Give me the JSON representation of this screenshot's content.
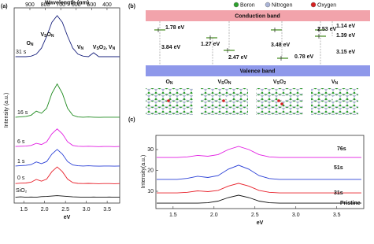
{
  "chart_data": [
    {
      "type": "line",
      "panel_label": "(a)",
      "x_label": "eV",
      "y_label": "Intensity (a.u.)",
      "x2_label": "Wavelength (nm)",
      "x": [
        1.3,
        1.425,
        1.55,
        1.675,
        1.8,
        1.925,
        2.05,
        2.175,
        2.3,
        2.425,
        2.55,
        2.675,
        2.8,
        2.925,
        3.05,
        3.175,
        3.3,
        3.425,
        3.55,
        3.675,
        3.8
      ],
      "xlim": [
        1.27,
        3.8
      ],
      "xticks": [
        1.5,
        {
          "value": 2,
          "label": "2.0"
        },
        2.5,
        {
          "value": 3,
          "label": "3.0"
        },
        3.5
      ],
      "x2lim": [
        1002,
        318
      ],
      "x2ticks": [
        900,
        800,
        700,
        600,
        500,
        400
      ],
      "ylim": [
        0,
        100
      ],
      "series": [
        {
          "name": "SiO₂",
          "color": "#111111",
          "values": [
            3,
            3.2,
            3,
            3.1,
            3,
            3.3,
            3.4,
            3.6,
            3.8,
            3.6,
            3.4,
            3.2,
            3.1,
            3,
            3,
            3.1,
            3,
            3,
            3.1,
            3,
            3
          ]
        },
        {
          "name": "0 s",
          "color": "#e8202a",
          "values": [
            10,
            10.2,
            10.3,
            10.7,
            12.1,
            11.2,
            12.3,
            16.1,
            18.5,
            16.1,
            12.3,
            10.5,
            10.1,
            10,
            10.1,
            10,
            9.9,
            10,
            10,
            9.9,
            10
          ]
        },
        {
          "name": "1 s",
          "color": "#2a3fd6",
          "values": [
            19,
            19.2,
            19.3,
            19.7,
            21.1,
            20.2,
            21.3,
            25.1,
            27.5,
            25.1,
            21.3,
            19.5,
            19.1,
            19,
            19.1,
            19,
            18.9,
            19,
            19,
            18.9,
            19
          ]
        },
        {
          "name": "6 s",
          "color": "#e21ee2",
          "values": [
            29,
            29.1,
            29.2,
            29.5,
            30.6,
            30,
            31.4,
            35.5,
            38,
            35.5,
            31.4,
            29.5,
            29.1,
            29,
            29.1,
            29,
            28.9,
            29,
            29,
            28.9,
            29
          ]
        },
        {
          "name": "16 s",
          "color": "#1f8a1f",
          "values": [
            44,
            44.2,
            44.4,
            45,
            47.1,
            46,
            48.6,
            56.2,
            61,
            56.2,
            48.6,
            45,
            44.1,
            44,
            44.1,
            44,
            43.9,
            44,
            44,
            44,
            44
          ]
        },
        {
          "name": "31 s",
          "color": "#1a237e",
          "values": [
            75,
            75,
            75,
            75.3,
            76.3,
            79.4,
            85.5,
            92.6,
            96,
            92.6,
            85.5,
            79.4,
            76.3,
            75.3,
            75,
            77,
            75,
            75,
            75,
            75,
            75
          ]
        }
      ],
      "annotations": [
        {
          "parts": [
            "O",
            "N"
          ],
          "color": "#e8202a"
        },
        {
          "parts": [
            "V",
            "S",
            "O",
            "N"
          ],
          "color": "#d020d0"
        },
        {
          "parts": [
            "V",
            "N"
          ],
          "color": "#e07a00"
        },
        {
          "parts": [
            "V",
            "S",
            "O",
            "2",
            ", V",
            "N"
          ],
          "color": "#17c0d0"
        }
      ]
    },
    {
      "type": "line",
      "panel_label": "(c)",
      "x_label": "eV",
      "y_label": "Intensity(a.u.)",
      "x": [
        1.3,
        1.425,
        1.55,
        1.675,
        1.8,
        1.925,
        2.05,
        2.175,
        2.3,
        2.425,
        2.55,
        2.675,
        2.8,
        2.925,
        3.05,
        3.175,
        3.3,
        3.425,
        3.55,
        3.675,
        3.8
      ],
      "xlim": [
        1.29,
        3.83
      ],
      "xticks": [
        1.5,
        {
          "value": 2,
          "label": "2.0"
        },
        2.5,
        {
          "value": 3,
          "label": "3.0"
        },
        3.5
      ],
      "ylim": [
        1.7,
        36.8
      ],
      "yticks": [
        10,
        20,
        30
      ],
      "series": [
        {
          "name": "Pristine",
          "color": "#111111",
          "values": [
            4.3,
            4.3,
            4.3,
            4.3,
            4.3,
            4.5,
            5.3,
            7,
            8.1,
            7,
            5.3,
            4.5,
            4.3,
            4.3,
            4.3,
            4.3,
            4.3,
            4.3,
            4.3,
            4.3,
            4.3
          ]
        },
        {
          "name": "31s",
          "color": "#e8202a",
          "values": [
            9.2,
            9.2,
            9.2,
            9.5,
            10.2,
            9.8,
            10.4,
            12.5,
            13.8,
            12.5,
            10.4,
            9.5,
            9.2,
            9.2,
            9.2,
            9.2,
            9.2,
            9.2,
            9.2,
            9.2,
            9.2
          ]
        },
        {
          "name": "51s",
          "color": "#2a3fd6",
          "values": [
            15.7,
            15.7,
            15.7,
            16.2,
            17.2,
            16.6,
            17.5,
            20.6,
            22.5,
            20.6,
            17.5,
            16.1,
            15.7,
            15.7,
            15.7,
            15.7,
            15.7,
            15.7,
            15.7,
            15.7,
            15.7
          ]
        },
        {
          "name": "76s",
          "color": "#e21ee2",
          "values": [
            26.2,
            26.2,
            26.2,
            26.5,
            27.2,
            26.8,
            27.6,
            30,
            31.5,
            30,
            27.6,
            26.5,
            26.2,
            26.2,
            26.2,
            26.2,
            26.2,
            26.2,
            26.2,
            26.2,
            26.2
          ]
        }
      ]
    }
  ],
  "diagram": {
    "panel_label": "(b)",
    "legend": [
      {
        "label": "Boron",
        "color": "#2ca02c"
      },
      {
        "label": "Nitrogen",
        "color": "#aab4d6"
      },
      {
        "label": "Oxygen",
        "color": "#d62020"
      }
    ],
    "conduction_band": "Conduction band",
    "valence_band": "Valence band",
    "energies": [
      "1.78 eV",
      "3.84 eV",
      "1.27 eV",
      "2.47 eV",
      "3.48 eV",
      "0.78 eV",
      "2.53 eV",
      "1.14 eV",
      "1.39 eV",
      "3.15 eV"
    ],
    "structures": [
      {
        "parts": [
          "O",
          "N"
        ]
      },
      {
        "parts": [
          "V",
          "S",
          "O",
          "N"
        ]
      },
      {
        "parts": [
          "V",
          "S",
          "O",
          "2"
        ]
      },
      {
        "parts": [
          "V",
          "N"
        ]
      }
    ]
  }
}
